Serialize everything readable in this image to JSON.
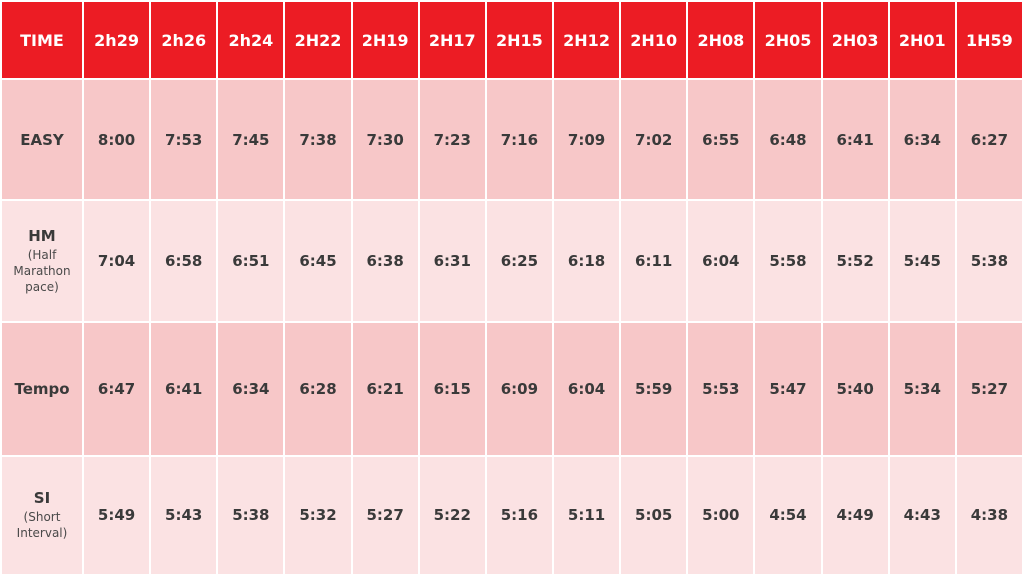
{
  "header": {
    "corner": "TIME",
    "times": [
      "2h29",
      "2h26",
      "2h24",
      "2H22",
      "2H19",
      "2H17",
      "2H15",
      "2H12",
      "2H10",
      "2H08",
      "2H05",
      "2H03",
      "2H01",
      "1H59"
    ]
  },
  "rows": [
    {
      "label": "EASY",
      "sublabel": "",
      "paces": [
        "8:00",
        "7:53",
        "7:45",
        "7:38",
        "7:30",
        "7:23",
        "7:16",
        "7:09",
        "7:02",
        "6:55",
        "6:48",
        "6:41",
        "6:34",
        "6:27"
      ]
    },
    {
      "label": "HM",
      "sublabel": "(Half Marathon pace)",
      "paces": [
        "7:04",
        "6:58",
        "6:51",
        "6:45",
        "6:38",
        "6:31",
        "6:25",
        "6:18",
        "6:11",
        "6:04",
        "5:58",
        "5:52",
        "5:45",
        "5:38"
      ]
    },
    {
      "label": "Tempo",
      "sublabel": "",
      "paces": [
        "6:47",
        "6:41",
        "6:34",
        "6:28",
        "6:21",
        "6:15",
        "6:09",
        "6:04",
        "5:59",
        "5:53",
        "5:47",
        "5:40",
        "5:34",
        "5:27"
      ]
    },
    {
      "label": "SI",
      "sublabel": "(Short Interval)",
      "paces": [
        "5:49",
        "5:43",
        "5:38",
        "5:32",
        "5:27",
        "5:22",
        "5:16",
        "5:11",
        "5:05",
        "5:00",
        "4:54",
        "4:49",
        "4:43",
        "4:38"
      ]
    }
  ],
  "colors": {
    "header_red": "#ec1c24",
    "row_dark": "#f7c7c8",
    "row_light": "#fbe2e3"
  }
}
